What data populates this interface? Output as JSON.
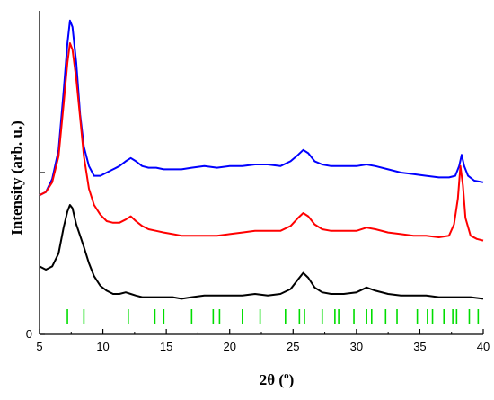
{
  "chart_data": {
    "type": "line",
    "xlabel": "2θ (",
    "xlabel_sup": "o",
    "xlabel_tail": ")",
    "ylabel": "Intensity (arb. u.)",
    "xlim": [
      5,
      40
    ],
    "ylim": [
      0,
      100
    ],
    "x_ticks": [
      5,
      10,
      15,
      20,
      25,
      30,
      35,
      40
    ],
    "x_tick_labels": [
      "5",
      "10",
      "15",
      "20",
      "25",
      "30",
      "35",
      "40"
    ],
    "y_ticks": [
      0,
      50
    ],
    "y_tick_labels": [
      "0",
      ""
    ],
    "grid": false,
    "legend": "none",
    "colors": {
      "blue": "#0000ff",
      "red": "#ff0000",
      "black": "#000000",
      "reference": "#00dd00"
    },
    "series": [
      {
        "color": "#0000ff",
        "points": [
          [
            5.0,
            43
          ],
          [
            5.5,
            44
          ],
          [
            6.0,
            48
          ],
          [
            6.5,
            57
          ],
          [
            6.9,
            75
          ],
          [
            7.2,
            90
          ],
          [
            7.4,
            97
          ],
          [
            7.6,
            95
          ],
          [
            7.9,
            84
          ],
          [
            8.2,
            68
          ],
          [
            8.5,
            58
          ],
          [
            8.9,
            52
          ],
          [
            9.3,
            49
          ],
          [
            9.8,
            49
          ],
          [
            10.3,
            50
          ],
          [
            10.8,
            51
          ],
          [
            11.3,
            52
          ],
          [
            11.8,
            53.5
          ],
          [
            12.2,
            54.5
          ],
          [
            12.6,
            53.5
          ],
          [
            13.1,
            52
          ],
          [
            13.6,
            51.5
          ],
          [
            14.2,
            51.5
          ],
          [
            14.8,
            51
          ],
          [
            15.5,
            51
          ],
          [
            16.2,
            51
          ],
          [
            17.0,
            51.5
          ],
          [
            18.0,
            52
          ],
          [
            19.0,
            51.5
          ],
          [
            20.0,
            52
          ],
          [
            21.0,
            52
          ],
          [
            22.0,
            52.5
          ],
          [
            23.0,
            52.5
          ],
          [
            24.0,
            52
          ],
          [
            24.8,
            53.5
          ],
          [
            25.4,
            55.5
          ],
          [
            25.8,
            57
          ],
          [
            26.2,
            56
          ],
          [
            26.7,
            53.5
          ],
          [
            27.3,
            52.5
          ],
          [
            28.0,
            52
          ],
          [
            29.0,
            52
          ],
          [
            30.0,
            52
          ],
          [
            30.8,
            52.5
          ],
          [
            31.5,
            52
          ],
          [
            32.5,
            51
          ],
          [
            33.5,
            50
          ],
          [
            34.5,
            49.5
          ],
          [
            35.5,
            49
          ],
          [
            36.5,
            48.5
          ],
          [
            37.3,
            48.5
          ],
          [
            37.8,
            49
          ],
          [
            38.1,
            52
          ],
          [
            38.3,
            55.5
          ],
          [
            38.5,
            52
          ],
          [
            38.8,
            49
          ],
          [
            39.3,
            47.5
          ],
          [
            40.0,
            47
          ]
        ]
      },
      {
        "color": "#ff0000",
        "points": [
          [
            5.0,
            43
          ],
          [
            5.5,
            44
          ],
          [
            6.0,
            47
          ],
          [
            6.5,
            55
          ],
          [
            6.9,
            71
          ],
          [
            7.2,
            84
          ],
          [
            7.4,
            90
          ],
          [
            7.6,
            88
          ],
          [
            7.9,
            79
          ],
          [
            8.2,
            67
          ],
          [
            8.5,
            55
          ],
          [
            8.9,
            45
          ],
          [
            9.3,
            40
          ],
          [
            9.8,
            37
          ],
          [
            10.3,
            35
          ],
          [
            10.8,
            34.5
          ],
          [
            11.3,
            34.5
          ],
          [
            11.8,
            35.5
          ],
          [
            12.2,
            36.5
          ],
          [
            12.6,
            35
          ],
          [
            13.1,
            33.5
          ],
          [
            13.6,
            32.5
          ],
          [
            14.2,
            32
          ],
          [
            14.8,
            31.5
          ],
          [
            15.5,
            31
          ],
          [
            16.2,
            30.5
          ],
          [
            17.0,
            30.5
          ],
          [
            18.0,
            30.5
          ],
          [
            19.0,
            30.5
          ],
          [
            20.0,
            31
          ],
          [
            21.0,
            31.5
          ],
          [
            22.0,
            32
          ],
          [
            23.0,
            32
          ],
          [
            24.0,
            32
          ],
          [
            24.8,
            33.5
          ],
          [
            25.4,
            36
          ],
          [
            25.8,
            37.5
          ],
          [
            26.2,
            36.5
          ],
          [
            26.7,
            34
          ],
          [
            27.3,
            32.5
          ],
          [
            28.0,
            32
          ],
          [
            29.0,
            32
          ],
          [
            30.0,
            32
          ],
          [
            30.8,
            33
          ],
          [
            31.5,
            32.5
          ],
          [
            32.5,
            31.5
          ],
          [
            33.5,
            31
          ],
          [
            34.5,
            30.5
          ],
          [
            35.5,
            30.5
          ],
          [
            36.5,
            30
          ],
          [
            37.3,
            30.5
          ],
          [
            37.7,
            34
          ],
          [
            38.0,
            42
          ],
          [
            38.2,
            52
          ],
          [
            38.4,
            46
          ],
          [
            38.6,
            36
          ],
          [
            39.0,
            30.5
          ],
          [
            39.5,
            29.5
          ],
          [
            40.0,
            29
          ]
        ]
      },
      {
        "color": "#000000",
        "points": [
          [
            5.0,
            21
          ],
          [
            5.5,
            20
          ],
          [
            6.0,
            21
          ],
          [
            6.5,
            25
          ],
          [
            6.9,
            33
          ],
          [
            7.2,
            38
          ],
          [
            7.4,
            40
          ],
          [
            7.6,
            39
          ],
          [
            7.9,
            34
          ],
          [
            8.2,
            30.5
          ],
          [
            8.5,
            27
          ],
          [
            8.9,
            22
          ],
          [
            9.3,
            18
          ],
          [
            9.8,
            15
          ],
          [
            10.3,
            13.5
          ],
          [
            10.8,
            12.5
          ],
          [
            11.3,
            12.5
          ],
          [
            11.8,
            13
          ],
          [
            12.2,
            12.5
          ],
          [
            12.6,
            12
          ],
          [
            13.1,
            11.5
          ],
          [
            13.6,
            11.5
          ],
          [
            14.2,
            11.5
          ],
          [
            14.8,
            11.5
          ],
          [
            15.5,
            11.5
          ],
          [
            16.2,
            11
          ],
          [
            17.0,
            11.5
          ],
          [
            18.0,
            12
          ],
          [
            19.0,
            12
          ],
          [
            20.0,
            12
          ],
          [
            21.0,
            12
          ],
          [
            22.0,
            12.5
          ],
          [
            23.0,
            12
          ],
          [
            24.0,
            12.5
          ],
          [
            24.8,
            14
          ],
          [
            25.4,
            17
          ],
          [
            25.8,
            19
          ],
          [
            26.2,
            17.5
          ],
          [
            26.7,
            14.5
          ],
          [
            27.3,
            13
          ],
          [
            28.0,
            12.5
          ],
          [
            29.0,
            12.5
          ],
          [
            30.0,
            13
          ],
          [
            30.8,
            14.5
          ],
          [
            31.5,
            13.5
          ],
          [
            32.5,
            12.5
          ],
          [
            33.5,
            12
          ],
          [
            34.5,
            12
          ],
          [
            35.5,
            12
          ],
          [
            36.5,
            11.5
          ],
          [
            37.3,
            11.5
          ],
          [
            38.0,
            11.5
          ],
          [
            38.5,
            11.5
          ],
          [
            39.0,
            11.5
          ],
          [
            40.0,
            11
          ]
        ]
      }
    ],
    "reference_lines": [
      7.2,
      8.5,
      12.0,
      14.1,
      14.8,
      17.0,
      18.7,
      19.2,
      21.0,
      22.4,
      24.4,
      25.5,
      25.9,
      27.3,
      28.3,
      28.6,
      29.8,
      30.8,
      31.2,
      32.3,
      33.2,
      34.8,
      35.6,
      36.0,
      36.9,
      37.6,
      37.9,
      38.9,
      39.6
    ]
  }
}
